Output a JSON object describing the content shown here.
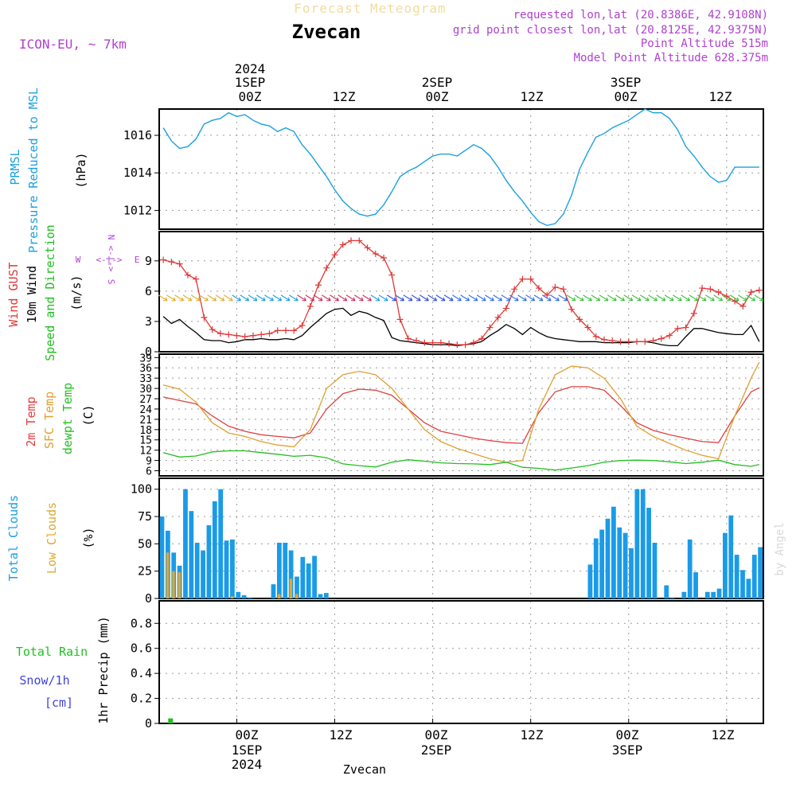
{
  "header": {
    "title": "Forecast Meteogram",
    "location": "Zvecan",
    "model": "ICON-EU, ~ 7km",
    "requested": "requested lon,lat (20.8386E, 42.9108N)",
    "grid_point": "grid point closest lon,lat (20.8125E, 42.9375N)",
    "point_altitude": "Point Altitude 515m",
    "model_altitude": "Model Point Altitude 628.375m",
    "credit": "by Angel",
    "footer_location": "Zvecan"
  },
  "time_axis": {
    "top_year": "2024",
    "day_labels": [
      "1SEP",
      "2SEP",
      "3SEP"
    ],
    "hour_labels": [
      "00Z",
      "12Z",
      "00Z",
      "12Z",
      "00Z",
      "12Z"
    ],
    "bottom_year": "2024"
  },
  "panel_labels": {
    "pressure": [
      "PRMSL",
      "Pressure Reduced to MSL"
    ],
    "pressure_unit": "(hPa)",
    "wind": [
      "Wind GUST",
      "10m Wind",
      "Speed and Direction"
    ],
    "wind_unit": "(m/s)",
    "compass": {
      "n": "N",
      "s": "S",
      "w": "W",
      "e": "E",
      "ns_arrow": "<-|->",
      "we_arrow": "<-|->"
    },
    "temp": [
      "2m Temp",
      "SFC Temp",
      "dewpt Temp"
    ],
    "temp_unit": "(C)",
    "clouds": [
      "Total Clouds",
      "Low Clouds"
    ],
    "clouds_unit": "(%)",
    "precip_left": [
      "Total Rain",
      "Snow/1h",
      "[cm]"
    ],
    "precip_unit": "1hr Precip (mm)"
  },
  "colors": {
    "pressure": "#1aa0e0",
    "gust": "#e03838",
    "wind": "#000000",
    "sfc_temp": "#e0a030",
    "t2m": "#e04040",
    "dewpt": "#20c020",
    "total_clouds": "#1a9be8",
    "low_clouds": "#e0a830",
    "rain": "#20c020",
    "purple": "#b040d0"
  },
  "chart_data": [
    {
      "type": "line",
      "name": "pressure",
      "x_hours_start": -9,
      "x_hours_end": 55,
      "ylim": [
        1011,
        1017.4
      ],
      "yticks": [
        1012,
        1014,
        1016
      ],
      "series": [
        {
          "name": "PRMSL",
          "x": [
            -9,
            -8,
            -7,
            -6,
            -5,
            -4,
            -3,
            -2,
            -1,
            0,
            1,
            2,
            3,
            4,
            5,
            6,
            7,
            8,
            9,
            10,
            11,
            12,
            13,
            14,
            15,
            16,
            17,
            18,
            19,
            20,
            21,
            22,
            23,
            24,
            25,
            26,
            27,
            28,
            29,
            30,
            31,
            32,
            33,
            34,
            35,
            36,
            37,
            38,
            39,
            40,
            41,
            42,
            43,
            44,
            45,
            46,
            47,
            48,
            49,
            50,
            51,
            52,
            53,
            54,
            55
          ],
          "values": [
            1016.4,
            1015.7,
            1015.3,
            1015.4,
            1015.8,
            1016.6,
            1016.8,
            1016.9,
            1017.2,
            1017.0,
            1017.1,
            1016.8,
            1016.6,
            1016.5,
            1016.2,
            1016.4,
            1016.2,
            1015.5,
            1015.0,
            1014.4,
            1013.8,
            1013.1,
            1012.5,
            1012.1,
            1011.8,
            1011.7,
            1011.8,
            1012.3,
            1013.0,
            1013.8,
            1014.1,
            1014.3,
            1014.6,
            1014.9,
            1015.0,
            1015.0,
            1014.9,
            1015.2,
            1015.5,
            1015.3,
            1014.9,
            1014.3,
            1013.6,
            1013.0,
            1012.5,
            1011.9,
            1011.4,
            1011.2,
            1011.3,
            1011.8,
            1012.8,
            1014.2,
            1015.1,
            1015.9,
            1016.1,
            1016.4,
            1016.6,
            1016.8,
            1017.1,
            1017.4,
            1017.2,
            1017.2,
            1016.9,
            1016.3,
            1015.4
          ]
        },
        {
          "name": "PRMSL-tail",
          "x": [
            55,
            56,
            57,
            58,
            59,
            60,
            61,
            62,
            63,
            64
          ],
          "values": [
            1015.4,
            1014.9,
            1014.3,
            1013.8,
            1013.5,
            1013.6,
            1014.3,
            1014.3,
            1014.3,
            1014.3
          ]
        }
      ]
    },
    {
      "type": "line",
      "name": "wind",
      "ylim": [
        0,
        11.9
      ],
      "yticks": [
        0,
        3,
        6,
        9
      ],
      "series": [
        {
          "name": "Wind GUST",
          "x": [
            -9,
            -8,
            -7,
            -6,
            -5,
            -4,
            -3,
            -2,
            -1,
            0,
            1,
            2,
            3,
            4,
            5,
            6,
            7,
            8,
            9,
            10,
            11,
            12,
            13,
            14,
            15,
            16,
            17,
            18,
            19,
            20,
            21,
            22,
            23,
            24,
            25,
            26,
            27,
            28,
            29,
            30,
            31,
            32,
            33,
            34,
            35,
            36,
            37,
            38,
            39,
            40,
            41,
            42,
            43,
            44,
            45,
            46,
            47,
            48,
            49,
            50,
            51,
            52,
            53,
            54,
            55,
            56,
            57,
            58,
            59,
            60,
            61,
            62,
            63,
            64
          ],
          "values": [
            9.1,
            8.9,
            8.7,
            7.6,
            7.2,
            3.4,
            2.2,
            1.8,
            1.7,
            1.6,
            1.5,
            1.6,
            1.7,
            1.8,
            2.1,
            2.1,
            2.1,
            2.6,
            4.5,
            6.6,
            8.3,
            9.6,
            10.6,
            11.0,
            11.0,
            10.3,
            9.7,
            9.3,
            7.6,
            3.2,
            1.3,
            1.1,
            0.9,
            0.9,
            0.9,
            0.8,
            0.7,
            0.7,
            0.9,
            1.3,
            2.4,
            3.4,
            4.3,
            6.2,
            7.2,
            7.2,
            6.3,
            5.6,
            6.4,
            6.2,
            4.2,
            3.2,
            2.4,
            1.5,
            1.2,
            1.1,
            1.0,
            1.0,
            1.0,
            1.0,
            1.1,
            1.3,
            1.6,
            2.3,
            2.4,
            3.8,
            6.3,
            6.2,
            5.9,
            5.5,
            5.0,
            4.5,
            5.9,
            6.1
          ]
        },
        {
          "name": "10m Wind",
          "x": [
            -9,
            -8,
            -7,
            -6,
            -5,
            -4,
            -3,
            -2,
            -1,
            0,
            1,
            2,
            3,
            4,
            5,
            6,
            7,
            8,
            9,
            10,
            11,
            12,
            13,
            14,
            15,
            16,
            17,
            18,
            19,
            20,
            21,
            22,
            23,
            24,
            25,
            26,
            27,
            28,
            29,
            30,
            31,
            32,
            33,
            34,
            35,
            36,
            37,
            38,
            39,
            40,
            41,
            42,
            43,
            44,
            45,
            46,
            47,
            48,
            49,
            50,
            51,
            52,
            53,
            54,
            55,
            56,
            57,
            58,
            59,
            60,
            61,
            62,
            63,
            64
          ],
          "values": [
            3.5,
            2.8,
            3.2,
            2.5,
            1.9,
            1.2,
            1.1,
            1.1,
            0.9,
            1.0,
            1.2,
            1.2,
            1.3,
            1.2,
            1.2,
            1.3,
            1.2,
            1.6,
            2.4,
            3.1,
            3.8,
            4.2,
            4.3,
            3.6,
            4.0,
            3.8,
            3.4,
            3.1,
            1.4,
            1.1,
            1.0,
            0.9,
            0.8,
            0.7,
            0.7,
            0.7,
            0.6,
            0.7,
            0.8,
            1.0,
            1.6,
            2.1,
            2.7,
            2.3,
            1.7,
            2.4,
            1.9,
            1.5,
            1.3,
            1.2,
            1.1,
            1.0,
            1.0,
            1.0,
            0.9,
            0.9,
            0.9,
            0.9,
            1.0,
            1.0,
            0.9,
            0.7,
            0.6,
            0.6,
            1.5,
            2.3,
            2.3,
            2.1,
            1.9,
            1.8,
            1.7,
            1.7,
            2.6,
            1.0
          ]
        }
      ]
    },
    {
      "type": "line",
      "name": "temperature",
      "ylim": [
        4.5,
        40
      ],
      "yticks": [
        6,
        9,
        12,
        15,
        18,
        21,
        24,
        27,
        30,
        33,
        36,
        39
      ],
      "series": [
        {
          "name": "2m Temp",
          "x": [
            -9,
            -7,
            -5,
            -3,
            -1,
            1,
            3,
            5,
            7,
            9,
            11,
            13,
            15,
            17,
            19,
            21,
            23,
            25,
            27,
            29,
            31,
            33,
            35,
            37,
            39,
            41,
            43,
            45,
            47,
            49,
            51,
            53,
            55,
            57,
            59,
            61,
            63,
            64
          ],
          "values": [
            27.5,
            26.5,
            25.5,
            22,
            19,
            17.5,
            16.5,
            16,
            15.6,
            17,
            24,
            28.5,
            29.8,
            29.5,
            28,
            24,
            20,
            17.5,
            16.5,
            15.5,
            14.8,
            14.2,
            14,
            23,
            29,
            30.5,
            30.5,
            29.5,
            25,
            20,
            17.8,
            16.5,
            15.5,
            14.5,
            14.2,
            22,
            29,
            30.2
          ]
        },
        {
          "name": "SFC Temp",
          "x": [
            -9,
            -7,
            -5,
            -3,
            -1,
            1,
            3,
            5,
            7,
            9,
            11,
            13,
            15,
            17,
            19,
            21,
            23,
            25,
            27,
            29,
            31,
            33,
            35,
            37,
            39,
            41,
            43,
            45,
            47,
            49,
            51,
            53,
            55,
            57,
            59,
            61,
            63,
            64
          ],
          "values": [
            31,
            29.8,
            26,
            20,
            17,
            16,
            14.5,
            13.5,
            13,
            18,
            30,
            34,
            35,
            34,
            30,
            24,
            18,
            14.5,
            12.5,
            11,
            9.5,
            8.5,
            9,
            24,
            34,
            36.5,
            36,
            33,
            27,
            19,
            16,
            14,
            12,
            10.5,
            9.5,
            22,
            33,
            37.7
          ]
        },
        {
          "name": "dewpt Temp",
          "x": [
            -9,
            -7,
            -5,
            -3,
            -1,
            1,
            3,
            5,
            7,
            9,
            11,
            13,
            15,
            17,
            19,
            21,
            23,
            25,
            27,
            29,
            31,
            33,
            35,
            37,
            39,
            41,
            43,
            45,
            47,
            49,
            51,
            53,
            55,
            57,
            59,
            61,
            63,
            64
          ],
          "values": [
            11.3,
            10,
            10.3,
            11.5,
            11.8,
            11.8,
            11.3,
            10.8,
            10.2,
            10.5,
            9.8,
            8,
            7.5,
            7.1,
            8.5,
            9.2,
            8.8,
            8.3,
            8.1,
            8,
            7.8,
            8.5,
            7,
            6.7,
            6.2,
            6.8,
            7.5,
            8.5,
            9,
            9.1,
            9,
            8.6,
            8.1,
            8.5,
            9.1,
            7.8,
            7.3,
            7.8
          ]
        }
      ]
    },
    {
      "type": "bar",
      "name": "clouds",
      "ylim": [
        0,
        110
      ],
      "yticks": [
        0,
        25,
        50,
        75,
        100
      ],
      "series": [
        {
          "name": "Total Clouds",
          "values": [
            75,
            62,
            42,
            30,
            100,
            80,
            51,
            44,
            67,
            89,
            100,
            53,
            54,
            6,
            3,
            1,
            0,
            0,
            0,
            13,
            51,
            51,
            44,
            20,
            38,
            32,
            39,
            4,
            5,
            0,
            0,
            0,
            0,
            0,
            0,
            0,
            0,
            0,
            0,
            0,
            0,
            0,
            0,
            0,
            0,
            0,
            0,
            0,
            0,
            0,
            0,
            0,
            0,
            0,
            0,
            0,
            0,
            0,
            0,
            0,
            0,
            0,
            0,
            0,
            0,
            0,
            0,
            0,
            0,
            0,
            0,
            0,
            0,
            31,
            55,
            63,
            73,
            84,
            65,
            60,
            46,
            100,
            100,
            83,
            51,
            0,
            12,
            1,
            0,
            6,
            54,
            24,
            0,
            6,
            6,
            9,
            60,
            76,
            40,
            26,
            18,
            40,
            47
          ]
        },
        {
          "name": "Low Clouds",
          "values": [
            0,
            42,
            25,
            24,
            0,
            0,
            0,
            0,
            0,
            0,
            0,
            0,
            2,
            0,
            0,
            0,
            0,
            0,
            0,
            0,
            4,
            0,
            18,
            4,
            0,
            0,
            0,
            0,
            0,
            0,
            0,
            0,
            0,
            0,
            0,
            0,
            0,
            0,
            0,
            0,
            0,
            0,
            0,
            0,
            0,
            0,
            0,
            0,
            0,
            0,
            0,
            0,
            0,
            0,
            0,
            0,
            0,
            0,
            0,
            0,
            0,
            0,
            0,
            0,
            0,
            0,
            0,
            0,
            0,
            0,
            0,
            0,
            0,
            0,
            0,
            0,
            0,
            0,
            0,
            0,
            0,
            0,
            0,
            0,
            0,
            0,
            0,
            0,
            0,
            0,
            0,
            0,
            0,
            0,
            0,
            0,
            0,
            0,
            0,
            0,
            0,
            0,
            0
          ]
        }
      ]
    },
    {
      "type": "bar",
      "name": "precip",
      "ylim": [
        0,
        0.98
      ],
      "yticks": [
        0,
        0.2,
        0.4,
        0.6,
        0.8
      ],
      "tick_labels": [
        "0",
        "0.2",
        "0.4",
        "0.6",
        "0.8"
      ],
      "series": [
        {
          "name": "Total Rain",
          "x": [
            -8.4
          ],
          "values": [
            0.04
          ]
        }
      ]
    }
  ]
}
